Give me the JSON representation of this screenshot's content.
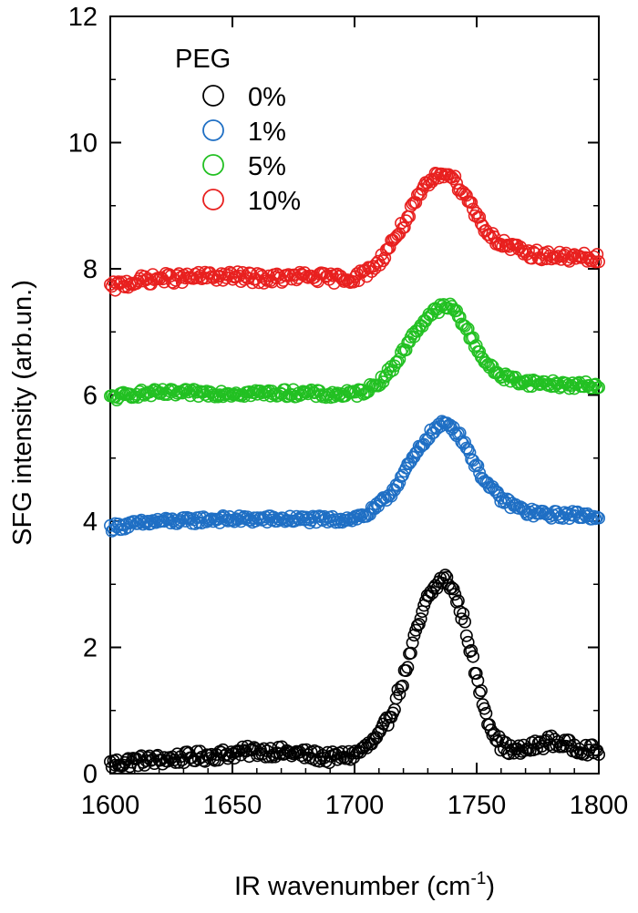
{
  "chart_data": {
    "type": "scatter",
    "title": "",
    "xlabel": "IR wavenumber (cm",
    "xlabel_superscript": "-1",
    "xlabel_suffix": ")",
    "ylabel": "SFG intensity (arb.un.)",
    "xlim": [
      1600,
      1800
    ],
    "ylim": [
      0,
      12
    ],
    "x_ticks": [
      1600,
      1650,
      1700,
      1750,
      1800
    ],
    "y_ticks": [
      0,
      2,
      4,
      6,
      8,
      10,
      12
    ],
    "legend": {
      "title": "PEG",
      "placement": "top-left"
    },
    "marker": "open-circle",
    "grid": false,
    "series": [
      {
        "name": "0%",
        "color": "#000000",
        "baseline": 0.2,
        "peak_height": 2.9,
        "peak_center": 1737,
        "peak_width": 9.5,
        "noise": 0.09,
        "x": [
          1600,
          1610,
          1620,
          1630,
          1640,
          1650,
          1660,
          1670,
          1680,
          1690,
          1700,
          1705,
          1710,
          1715,
          1720,
          1725,
          1730,
          1735,
          1737,
          1740,
          1745,
          1750,
          1755,
          1760,
          1765,
          1770,
          1775,
          1780,
          1790,
          1800
        ],
        "y": [
          0.15,
          0.2,
          0.22,
          0.25,
          0.28,
          0.32,
          0.36,
          0.34,
          0.3,
          0.25,
          0.3,
          0.42,
          0.58,
          0.95,
          1.5,
          2.2,
          2.8,
          3.05,
          3.1,
          2.95,
          2.4,
          1.5,
          0.8,
          0.45,
          0.35,
          0.38,
          0.45,
          0.52,
          0.42,
          0.35
        ]
      },
      {
        "name": "1%",
        "color": "#1f6fc4",
        "baseline": 4.0,
        "peak_height": 1.5,
        "peak_center": 1738,
        "peak_width": 11,
        "noise": 0.06,
        "x": [
          1600,
          1610,
          1620,
          1630,
          1640,
          1650,
          1660,
          1670,
          1680,
          1690,
          1700,
          1705,
          1710,
          1715,
          1720,
          1725,
          1730,
          1735,
          1738,
          1740,
          1745,
          1750,
          1755,
          1760,
          1770,
          1780,
          1790,
          1800
        ],
        "y": [
          3.9,
          3.95,
          4.0,
          4.0,
          4.03,
          4.03,
          4.03,
          4.03,
          4.03,
          4.02,
          4.05,
          4.1,
          4.25,
          4.45,
          4.75,
          5.05,
          5.35,
          5.52,
          5.55,
          5.5,
          5.25,
          4.85,
          4.55,
          4.35,
          4.15,
          4.1,
          4.1,
          4.08
        ]
      },
      {
        "name": "5%",
        "color": "#22c022",
        "baseline": 6.02,
        "peak_height": 1.35,
        "peak_center": 1739,
        "peak_width": 11,
        "noise": 0.06,
        "x": [
          1600,
          1610,
          1620,
          1630,
          1640,
          1650,
          1660,
          1670,
          1680,
          1690,
          1700,
          1705,
          1710,
          1715,
          1720,
          1725,
          1730,
          1735,
          1739,
          1742,
          1745,
          1750,
          1755,
          1760,
          1770,
          1780,
          1790,
          1800
        ],
        "y": [
          5.95,
          6.02,
          6.03,
          6.03,
          6.03,
          6.03,
          6.03,
          6.03,
          6.03,
          6.0,
          6.02,
          6.08,
          6.2,
          6.4,
          6.7,
          7.0,
          7.25,
          7.38,
          7.4,
          7.3,
          7.1,
          6.75,
          6.45,
          6.3,
          6.2,
          6.18,
          6.15,
          6.15
        ]
      },
      {
        "name": "10%",
        "color": "#e8201f",
        "baseline": 7.85,
        "peak_height": 1.6,
        "peak_center": 1738,
        "peak_width": 11,
        "noise": 0.08,
        "x": [
          1600,
          1610,
          1620,
          1630,
          1640,
          1650,
          1660,
          1670,
          1680,
          1690,
          1700,
          1705,
          1710,
          1715,
          1720,
          1725,
          1730,
          1735,
          1738,
          1740,
          1745,
          1750,
          1755,
          1760,
          1770,
          1780,
          1790,
          1800
        ],
        "y": [
          7.7,
          7.8,
          7.85,
          7.85,
          7.88,
          7.88,
          7.85,
          7.85,
          7.88,
          7.85,
          7.85,
          7.95,
          8.1,
          8.4,
          8.7,
          9.05,
          9.35,
          9.5,
          9.55,
          9.45,
          9.2,
          8.85,
          8.55,
          8.4,
          8.25,
          8.2,
          8.18,
          8.15
        ]
      }
    ]
  }
}
